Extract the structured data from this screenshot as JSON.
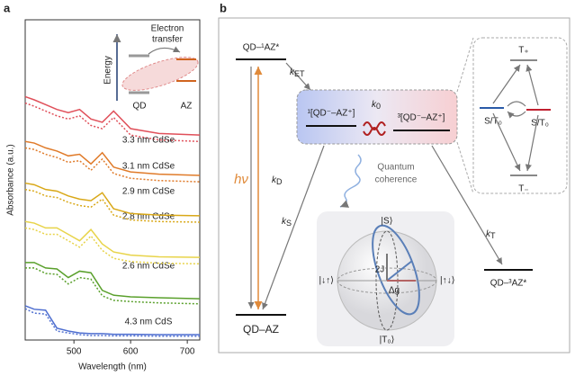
{
  "panel_labels": [
    "a",
    "b"
  ],
  "chart_data": {
    "type": "line",
    "x_label": "Wavelength (nm)",
    "y_label": "Absorbance (a.u.)",
    "x": [
      414,
      430,
      450,
      470,
      490,
      510,
      530,
      550,
      570,
      600,
      650,
      722
    ],
    "xlim": [
      414,
      722
    ],
    "ylim": [
      0,
      100
    ],
    "xticks": [
      500,
      600,
      700
    ],
    "series": [
      {
        "name": "4.3 nm CdS",
        "color": "#4f6fd0",
        "values": [
          10.7,
          9.6,
          9.3,
          3.7,
          2.8,
          2.2,
          2.0,
          2.0,
          1.8,
          1.8,
          1.7,
          1.7
        ],
        "dotted_values": [
          9.8,
          8.4,
          8.1,
          2.8,
          2.2,
          1.7,
          1.4,
          1.4,
          1.3,
          1.3,
          1.2,
          1.2
        ]
      },
      {
        "name": "2.6 nm CdSe",
        "color": "#5aa02c",
        "values": [
          24.2,
          24.2,
          22.5,
          22.2,
          19.5,
          21.5,
          21.0,
          15.5,
          14.0,
          13.5,
          13.2,
          12.9
        ],
        "dotted_values": [
          22.5,
          22.5,
          20.8,
          20.5,
          17.5,
          19.5,
          19.0,
          13.8,
          12.4,
          12.0,
          11.6,
          11.3
        ]
      },
      {
        "name": "2.8 nm CdSe",
        "color": "#e8d44a",
        "values": [
          37,
          36.5,
          35,
          35,
          33,
          31,
          34.5,
          30,
          27.5,
          26.5,
          26,
          25.8
        ],
        "dotted_values": [
          35,
          34.5,
          33,
          33,
          31,
          29,
          32.5,
          28,
          25.5,
          24.5,
          24,
          23.8
        ]
      },
      {
        "name": "2.9 nm CdSe",
        "color": "#d9a818",
        "values": [
          49,
          48.5,
          47,
          46.5,
          45,
          44,
          43.5,
          46,
          41,
          39.5,
          39,
          38.8
        ],
        "dotted_values": [
          47,
          46.5,
          45,
          44.5,
          43,
          42,
          41.5,
          44,
          39,
          37.5,
          37,
          36.8
        ]
      },
      {
        "name": "3.1 nm CdSe",
        "color": "#e07b2a",
        "values": [
          62,
          61.5,
          60,
          59,
          57.5,
          58,
          55,
          58.5,
          54,
          52.5,
          51.8,
          51.4
        ],
        "dotted_values": [
          60,
          59.5,
          58,
          57,
          55.5,
          56,
          53,
          56.5,
          52,
          50.5,
          49.8,
          49.4
        ]
      },
      {
        "name": "3.3 nm CdSe",
        "color": "#e0505a",
        "values": [
          76,
          75,
          73.5,
          72,
          71,
          72,
          69,
          68,
          71.5,
          66,
          64.5,
          64
        ],
        "dotted_values": [
          74,
          73,
          71.5,
          70,
          69,
          70,
          67,
          66,
          69.5,
          64,
          62.5,
          62
        ]
      }
    ]
  },
  "inset": {
    "axis": "Energy",
    "process": [
      "Electron",
      "transfer"
    ],
    "donor": "QD",
    "acceptor": "AZ"
  },
  "diagram": {
    "states": {
      "excited": "QD–¹AZ*",
      "ground": "QD–AZ",
      "triplet": "QD–³AZ*",
      "singlet_pair": "¹[QD⁻–AZ⁺]",
      "triplet_pair": "³[QD⁻–AZ⁺]"
    },
    "rates": {
      "et": {
        "symbol": "k",
        "sub": "ET"
      },
      "zero": {
        "symbol": "k",
        "sub": "0"
      },
      "d": {
        "symbol": "k",
        "sub": "D"
      },
      "s": {
        "symbol": "k",
        "sub": "S"
      },
      "t": {
        "symbol": "k",
        "sub": "T"
      }
    },
    "photon": "hν",
    "coherence": [
      "Quantum",
      "coherence"
    ],
    "sublevels": {
      "t_plus": "T₊",
      "t_minus": "T₋",
      "mixed_left": "S/T₀",
      "mixed_right": "S/T₀"
    },
    "bloch": {
      "top": "|S⟩",
      "bottom": "|T₀⟩",
      "left": "|↓↑⟩",
      "right": "|↑↓⟩",
      "exchange": "2J",
      "zeeman": "Δg"
    }
  }
}
